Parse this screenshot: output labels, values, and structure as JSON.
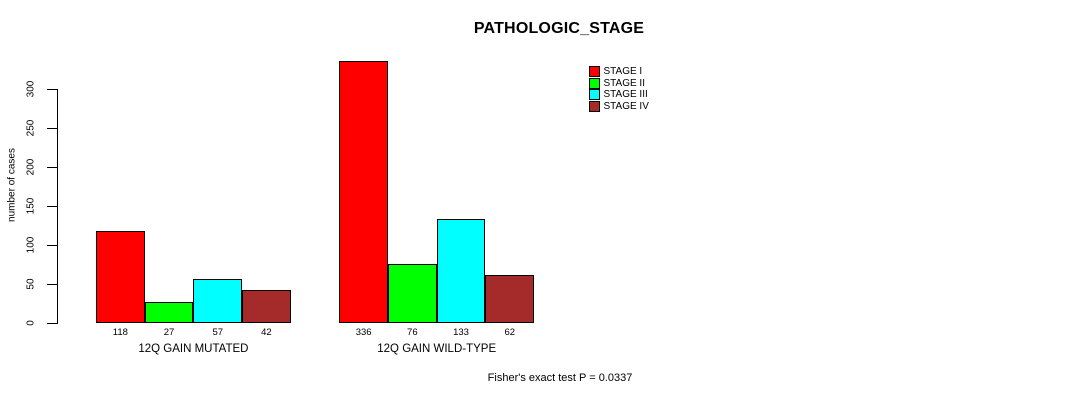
{
  "chart": {
    "title": "PATHOLOGIC_STAGE",
    "ylabel": "number of cases",
    "footer": "Fisher's exact test P = 0.0337"
  },
  "chart_data": {
    "type": "bar",
    "title": "PATHOLOGIC_STAGE",
    "xlabel": "",
    "ylabel": "number of cases",
    "annotation": "Fisher's exact test P = 0.0337",
    "categories": [
      "12Q GAIN MUTATED",
      "12Q GAIN WILD-TYPE"
    ],
    "series": [
      {
        "name": "STAGE I",
        "color": "#FF0000",
        "values": [
          118,
          336
        ]
      },
      {
        "name": "STAGE II",
        "color": "#00FF00",
        "values": [
          27,
          76
        ]
      },
      {
        "name": "STAGE III",
        "color": "#00FFFF",
        "values": [
          57,
          133
        ]
      },
      {
        "name": "STAGE IV",
        "color": "#A52A2A",
        "values": [
          42,
          62
        ]
      }
    ],
    "show_bar_value_labels": true,
    "ylim": [
      0,
      300
    ],
    "yticks": [
      0,
      50,
      100,
      150,
      200,
      250,
      300
    ],
    "grid": false,
    "legend_position": "top-right",
    "bar_border_color": "#000000",
    "axis_color": "#000000"
  }
}
